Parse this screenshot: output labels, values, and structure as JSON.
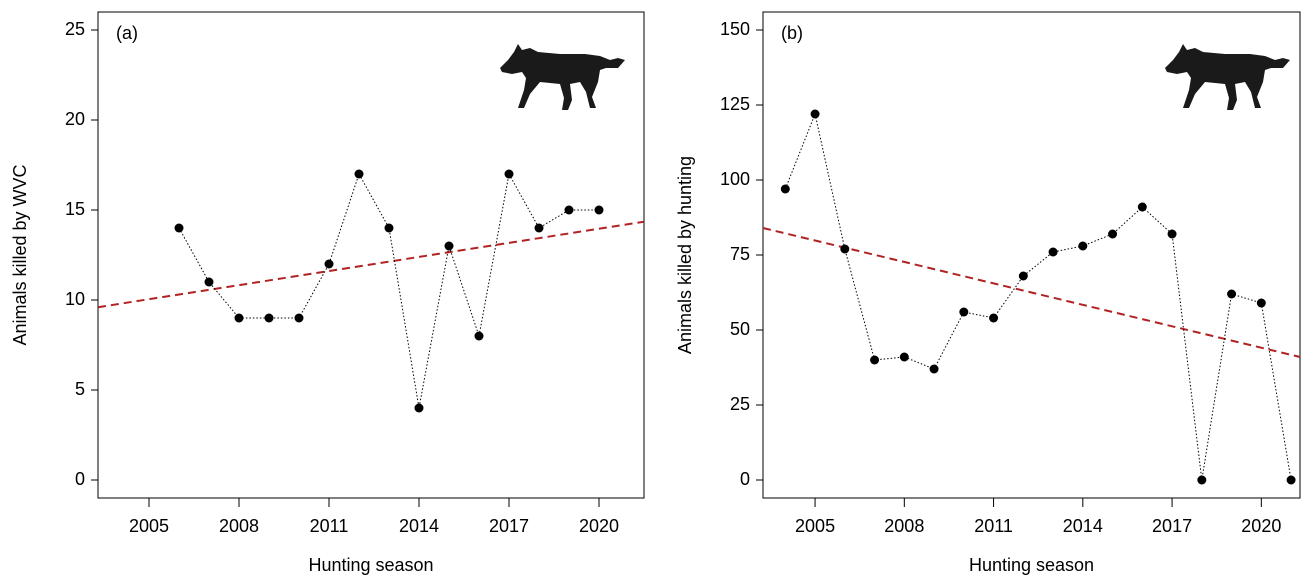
{
  "chart_data": [
    {
      "type": "line",
      "panel_label": "(a)",
      "xlabel": "Hunting season",
      "ylabel": "Animals killed by WVC",
      "x": [
        2006,
        2007,
        2008,
        2009,
        2010,
        2011,
        2012,
        2013,
        2014,
        2015,
        2016,
        2017,
        2018,
        2019,
        2020
      ],
      "values": [
        14,
        11,
        9,
        9,
        9,
        12,
        17,
        14,
        4,
        13,
        8,
        17,
        14,
        15,
        15
      ],
      "color": "#000000",
      "xlim": [
        2003.3,
        2021.5
      ],
      "xticks": [
        2005,
        2008,
        2011,
        2014,
        2017,
        2020
      ],
      "ylim": [
        -1,
        26
      ],
      "yticks": [
        0,
        5,
        10,
        15,
        20,
        25
      ],
      "trend_line": {
        "x": [
          2003.3,
          2021.5
        ],
        "y": [
          9.6,
          14.35
        ],
        "color": "#b22222"
      }
    },
    {
      "type": "line",
      "panel_label": "(b)",
      "xlabel": "Hunting season",
      "ylabel": "Animals killed by hunting",
      "x": [
        2004,
        2005,
        2006,
        2007,
        2008,
        2009,
        2010,
        2011,
        2012,
        2013,
        2014,
        2015,
        2016,
        2017,
        2018,
        2019,
        2020,
        2021
      ],
      "values": [
        97,
        122,
        77,
        40,
        41,
        37,
        56,
        54,
        68,
        76,
        78,
        82,
        91,
        82,
        0,
        62,
        59,
        0
      ],
      "color": "#000000",
      "xlim": [
        2003.25,
        2021.3
      ],
      "xticks": [
        2005,
        2008,
        2011,
        2014,
        2017,
        2020
      ],
      "ylim": [
        -6,
        156
      ],
      "yticks": [
        0,
        25,
        50,
        75,
        100,
        125,
        150
      ],
      "trend_line": {
        "x": [
          2003.25,
          2021.3
        ],
        "y": [
          84,
          41
        ],
        "color": "#b22222"
      }
    }
  ]
}
